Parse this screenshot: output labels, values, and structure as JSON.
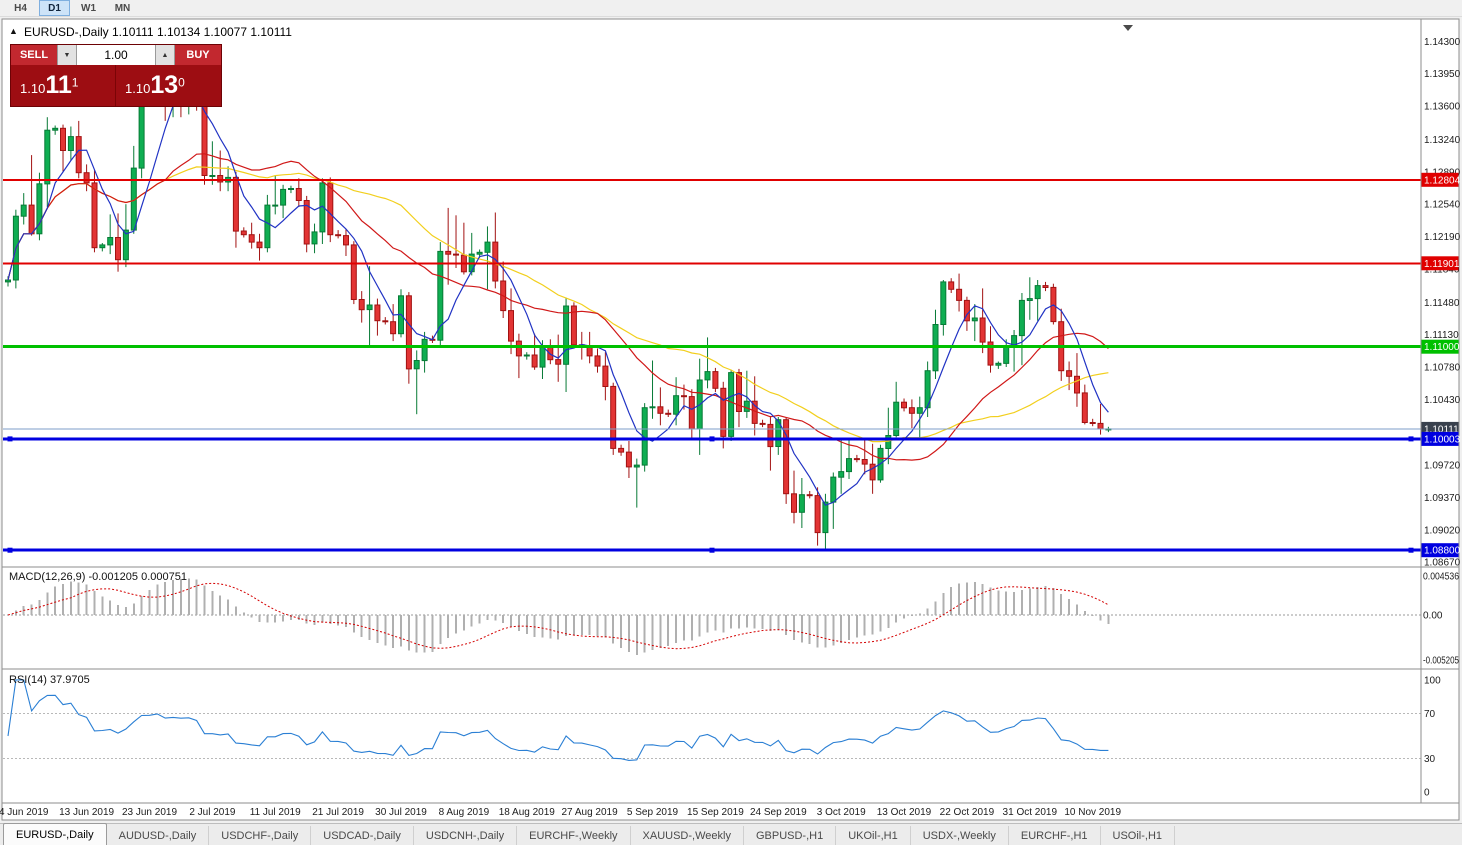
{
  "toolbar": {
    "timeframes": [
      "H4",
      "D1",
      "W1",
      "MN"
    ],
    "active": "D1"
  },
  "chart": {
    "title": "EURUSD-,Daily 1.10111 1.10134 1.10077 1.10111",
    "symbol": "EURUSD-",
    "period": "Daily"
  },
  "icons": {
    "one_click_collapse": "▲",
    "volume_down": "▼",
    "volume_up": "▲"
  },
  "one_click": {
    "sell_label": "SELL",
    "buy_label": "BUY",
    "volume": "1.00",
    "sell_price_prefix": "1.10",
    "sell_price_big": "11",
    "sell_price_sup": "1",
    "buy_price_prefix": "1.10",
    "buy_price_big": "13",
    "buy_price_sup": "0"
  },
  "macd": {
    "title": "MACD(12,26,9) -0.001205 0.000751",
    "value_main": "-0.001205",
    "value_signal": "0.000751"
  },
  "rsi": {
    "title": "RSI(14) 37.9705",
    "value": "37.9705"
  },
  "tabs": {
    "items": [
      "EURUSD-,Daily",
      "AUDUSD-,Daily",
      "USDCHF-,Daily",
      "USDCAD-,Daily",
      "USDCNH-,Daily",
      "EURCHF-,Weekly",
      "XAUUSD-,Weekly",
      "GBPUSD-,H1",
      "UKOil-,H1",
      "USDX-,Weekly",
      "EURCHF-,H1",
      "USOil-,H1"
    ],
    "active_index": 0
  },
  "chart_data": {
    "type": "candlestick",
    "symbol": "EURUSD-",
    "timeframe": "Daily",
    "last_bar_ohlc": {
      "open": "1.10111",
      "high": "1.10134",
      "low": "1.10077",
      "close": "1.10111"
    },
    "price_scale": {
      "max": 1.1452,
      "min": 1.0864
    },
    "price_axis": [
      {
        "v": 1.143,
        "t": "1.14300"
      },
      {
        "v": 1.1395,
        "t": "1.13950"
      },
      {
        "v": 1.136,
        "t": "1.13600"
      },
      {
        "v": 1.1324,
        "t": "1.13240"
      },
      {
        "v": 1.1289,
        "t": "1.12890"
      },
      {
        "v": 1.1254,
        "t": "1.12540"
      },
      {
        "v": 1.1219,
        "t": "1.12190"
      },
      {
        "v": 1.1184,
        "t": "1.11840"
      },
      {
        "v": 1.1148,
        "t": "1.11480"
      },
      {
        "v": 1.1113,
        "t": "1.11130"
      },
      {
        "v": 1.1078,
        "t": "1.10780"
      },
      {
        "v": 1.1043,
        "t": "1.10430"
      },
      {
        "v": 1.0972,
        "t": "1.09720"
      },
      {
        "v": 1.0937,
        "t": "1.09370"
      },
      {
        "v": 1.0902,
        "t": "1.09020"
      },
      {
        "v": 1.0867,
        "t": "1.08670"
      }
    ],
    "badges": [
      {
        "v": 1.12804,
        "t": "1.12804",
        "bg": "#e00000",
        "fg": "#ffffff"
      },
      {
        "v": 1.11901,
        "t": "1.11901",
        "bg": "#e00000",
        "fg": "#ffffff"
      },
      {
        "v": 1.11,
        "t": "1.11000",
        "bg": "#00c000",
        "fg": "#ffffff"
      },
      {
        "v": 1.10111,
        "t": "1.10111",
        "bg": "#39414d",
        "fg": "#ffffff"
      },
      {
        "v": 1.10003,
        "t": "1.10003",
        "bg": "#0000e0",
        "fg": "#ffffff"
      },
      {
        "v": 1.088,
        "t": "1.08800",
        "bg": "#0000e0",
        "fg": "#ffffff"
      }
    ],
    "hlines": [
      {
        "value": 1.12804,
        "color": "#e00000",
        "width": 2,
        "handles": false
      },
      {
        "value": 1.11901,
        "color": "#e00000",
        "width": 2,
        "handles": false
      },
      {
        "value": 1.11,
        "color": "#00c000",
        "width": 3,
        "handles": false
      },
      {
        "value": 1.10003,
        "color": "#0000e0",
        "width": 3,
        "handles": true
      },
      {
        "value": 1.088,
        "color": "#0000e0",
        "width": 3,
        "handles": true
      }
    ],
    "current_price": {
      "value": 1.10111,
      "line_color": "#7d9ec8"
    },
    "colors": {
      "up": "#0fae52",
      "down": "#e23434",
      "up_border": "#077a36",
      "down_border": "#a21212",
      "macd_bar": "#b0b0b0",
      "macd_signal": "#d40000",
      "rsi_line": "#2a7fd4"
    },
    "moving_averages": [
      {
        "period": 34,
        "color": "#f2cf1d",
        "name": "slow-ma"
      },
      {
        "period": 21,
        "color": "#d01818",
        "name": "medium-ma"
      },
      {
        "period": 6,
        "color": "#2133c4",
        "name": "fast-ma"
      }
    ],
    "candles": [
      [
        1.117,
        1.1176,
        1.1165,
        1.1172
      ],
      [
        1.1172,
        1.1248,
        1.1163,
        1.1241
      ],
      [
        1.1241,
        1.1266,
        1.1232,
        1.1253
      ],
      [
        1.1253,
        1.1307,
        1.122,
        1.1222
      ],
      [
        1.1222,
        1.1288,
        1.1215,
        1.1276
      ],
      [
        1.1276,
        1.1348,
        1.1251,
        1.1334
      ],
      [
        1.1334,
        1.1339,
        1.1329,
        1.1336
      ],
      [
        1.1336,
        1.134,
        1.1289,
        1.1312
      ],
      [
        1.1312,
        1.1338,
        1.1301,
        1.1327
      ],
      [
        1.1327,
        1.1344,
        1.1282,
        1.1288
      ],
      [
        1.1288,
        1.1297,
        1.1268,
        1.1277
      ],
      [
        1.1277,
        1.1291,
        1.1202,
        1.1207
      ],
      [
        1.1207,
        1.1212,
        1.1203,
        1.121
      ],
      [
        1.121,
        1.1243,
        1.12,
        1.1218
      ],
      [
        1.1218,
        1.1244,
        1.1181,
        1.1194
      ],
      [
        1.1194,
        1.1254,
        1.1186,
        1.1226
      ],
      [
        1.1226,
        1.1317,
        1.1222,
        1.1293
      ],
      [
        1.1293,
        1.1378,
        1.1282,
        1.1369
      ],
      [
        1.1369,
        1.1374,
        1.1365,
        1.1371
      ],
      [
        1.1371,
        1.1398,
        1.1367,
        1.139
      ],
      [
        1.139,
        1.14,
        1.1344,
        1.1366
      ],
      [
        1.1366,
        1.1391,
        1.1348,
        1.1373
      ],
      [
        1.1373,
        1.1388,
        1.1348,
        1.1369
      ],
      [
        1.1369,
        1.1391,
        1.1351,
        1.1373
      ],
      [
        1.1373,
        1.1377,
        1.1355,
        1.136
      ],
      [
        1.136,
        1.1365,
        1.1275,
        1.1285
      ],
      [
        1.1285,
        1.1322,
        1.1275,
        1.1285
      ],
      [
        1.1285,
        1.1312,
        1.1268,
        1.1278
      ],
      [
        1.1278,
        1.1295,
        1.1268,
        1.1283
      ],
      [
        1.1283,
        1.1289,
        1.1207,
        1.1225
      ],
      [
        1.1225,
        1.1229,
        1.1218,
        1.1221
      ],
      [
        1.1221,
        1.1234,
        1.1206,
        1.1213
      ],
      [
        1.1213,
        1.1222,
        1.1193,
        1.1207
      ],
      [
        1.1207,
        1.1264,
        1.1202,
        1.1253
      ],
      [
        1.1253,
        1.1285,
        1.1243,
        1.1253
      ],
      [
        1.1253,
        1.1275,
        1.1239,
        1.127
      ],
      [
        1.127,
        1.1274,
        1.1266,
        1.1271
      ],
      [
        1.1271,
        1.1282,
        1.1251,
        1.1258
      ],
      [
        1.1258,
        1.1263,
        1.1202,
        1.1211
      ],
      [
        1.1211,
        1.1233,
        1.1201,
        1.1224
      ],
      [
        1.1224,
        1.1282,
        1.1211,
        1.1277
      ],
      [
        1.1277,
        1.1283,
        1.1213,
        1.1221
      ],
      [
        1.1221,
        1.1226,
        1.1217,
        1.122
      ],
      [
        1.122,
        1.1227,
        1.1198,
        1.121
      ],
      [
        1.121,
        1.1214,
        1.1146,
        1.1151
      ],
      [
        1.1151,
        1.116,
        1.1126,
        1.114
      ],
      [
        1.114,
        1.1187,
        1.1101,
        1.1145
      ],
      [
        1.1145,
        1.1152,
        1.1112,
        1.1128
      ],
      [
        1.1128,
        1.1132,
        1.1124,
        1.1127
      ],
      [
        1.1127,
        1.1146,
        1.1106,
        1.1114
      ],
      [
        1.1114,
        1.1162,
        1.111,
        1.1155
      ],
      [
        1.1155,
        1.1159,
        1.106,
        1.1076
      ],
      [
        1.1076,
        1.1096,
        1.1027,
        1.1085
      ],
      [
        1.1085,
        1.1116,
        1.1072,
        1.1108
      ],
      [
        1.1108,
        1.1112,
        1.1104,
        1.1107
      ],
      [
        1.1107,
        1.1213,
        1.1101,
        1.1203
      ],
      [
        1.1203,
        1.125,
        1.1167,
        1.12
      ],
      [
        1.12,
        1.1242,
        1.1185,
        1.1199
      ],
      [
        1.1199,
        1.1234,
        1.1178,
        1.1181
      ],
      [
        1.1181,
        1.1223,
        1.1177,
        1.12
      ],
      [
        1.12,
        1.1205,
        1.1196,
        1.1202
      ],
      [
        1.1202,
        1.123,
        1.1162,
        1.1213
      ],
      [
        1.1213,
        1.1245,
        1.1163,
        1.1171
      ],
      [
        1.1171,
        1.1192,
        1.1131,
        1.1139
      ],
      [
        1.1139,
        1.1163,
        1.1092,
        1.1106
      ],
      [
        1.1106,
        1.1114,
        1.1066,
        1.109
      ],
      [
        1.109,
        1.1094,
        1.1086,
        1.1091
      ],
      [
        1.1091,
        1.1114,
        1.1075,
        1.1078
      ],
      [
        1.1078,
        1.1107,
        1.1065,
        1.11
      ],
      [
        1.11,
        1.1108,
        1.1081,
        1.1086
      ],
      [
        1.1086,
        1.1113,
        1.1062,
        1.1081
      ],
      [
        1.1081,
        1.1153,
        1.1051,
        1.1144
      ],
      [
        1.1144,
        1.1148,
        1.1098,
        1.1102
      ],
      [
        1.1102,
        1.1116,
        1.1086,
        1.1101
      ],
      [
        1.1101,
        1.1116,
        1.1082,
        1.109
      ],
      [
        1.109,
        1.1098,
        1.1072,
        1.1079
      ],
      [
        1.1079,
        1.1094,
        1.1042,
        1.1057
      ],
      [
        1.1057,
        1.1061,
        1.0983,
        1.099
      ],
      [
        1.099,
        1.0994,
        1.0982,
        1.0986
      ],
      [
        1.0986,
        1.0998,
        1.0958,
        1.097
      ],
      [
        1.097,
        1.0979,
        1.0926,
        1.0972
      ],
      [
        1.0972,
        1.1039,
        1.0965,
        1.1034
      ],
      [
        1.1034,
        1.1085,
        1.1022,
        1.1035
      ],
      [
        1.1035,
        1.1056,
        1.1015,
        1.1028
      ],
      [
        1.1028,
        1.1032,
        1.1024,
        1.1027
      ],
      [
        1.1027,
        1.1067,
        1.1015,
        1.1047
      ],
      [
        1.1047,
        1.1059,
        1.1032,
        1.1046
      ],
      [
        1.1046,
        1.1054,
        1.0999,
        1.1011
      ],
      [
        1.1011,
        1.1087,
        1.0983,
        1.1064
      ],
      [
        1.1064,
        1.111,
        1.1055,
        1.1073
      ],
      [
        1.1073,
        1.1077,
        1.1051,
        1.1055
      ],
      [
        1.1055,
        1.1062,
        1.099,
        1.1003
      ],
      [
        1.1003,
        1.1075,
        1.0998,
        1.1072
      ],
      [
        1.1072,
        1.1076,
        1.1013,
        1.103
      ],
      [
        1.103,
        1.1074,
        1.1023,
        1.1041
      ],
      [
        1.1041,
        1.1068,
        1.1004,
        1.1017
      ],
      [
        1.1017,
        1.1021,
        1.1013,
        1.1016
      ],
      [
        1.1016,
        1.1025,
        1.0966,
        1.0992
      ],
      [
        1.0992,
        1.1024,
        1.0983,
        1.1021
      ],
      [
        1.1021,
        1.1024,
        1.093,
        1.0941
      ],
      [
        1.0941,
        1.0966,
        1.0909,
        1.0921
      ],
      [
        1.0921,
        1.0958,
        1.0904,
        1.094
      ],
      [
        1.094,
        1.0944,
        1.0936,
        1.0939
      ],
      [
        1.0939,
        1.0948,
        1.0885,
        1.0899
      ],
      [
        1.0899,
        1.0941,
        1.0879,
        1.0932
      ],
      [
        1.0932,
        1.0964,
        1.0903,
        1.0959
      ],
      [
        1.0959,
        1.0999,
        1.0941,
        1.0965
      ],
      [
        1.0965,
        1.0999,
        1.0957,
        1.0979
      ],
      [
        1.0979,
        1.0983,
        1.0975,
        1.0978
      ],
      [
        1.0978,
        1.1,
        1.0962,
        1.0973
      ],
      [
        1.0973,
        1.0995,
        1.0941,
        1.0956
      ],
      [
        1.0956,
        1.0994,
        1.0953,
        1.099
      ],
      [
        1.099,
        1.1034,
        1.0973,
        1.1004
      ],
      [
        1.1004,
        1.1062,
        1.1002,
        1.104
      ],
      [
        1.104,
        1.1044,
        1.103,
        1.1034
      ],
      [
        1.1034,
        1.1043,
        1.1012,
        1.1028
      ],
      [
        1.1028,
        1.1046,
        1.1001,
        1.1034
      ],
      [
        1.1034,
        1.1084,
        1.1024,
        1.1074
      ],
      [
        1.1074,
        1.114,
        1.1065,
        1.1124
      ],
      [
        1.1124,
        1.1172,
        1.1112,
        1.117
      ],
      [
        1.117,
        1.1174,
        1.1158,
        1.1162
      ],
      [
        1.1162,
        1.1179,
        1.1138,
        1.115
      ],
      [
        1.115,
        1.1154,
        1.1117,
        1.1128
      ],
      [
        1.1128,
        1.1146,
        1.1106,
        1.1131
      ],
      [
        1.1131,
        1.1163,
        1.1093,
        1.1105
      ],
      [
        1.1105,
        1.1122,
        1.1072,
        1.108
      ],
      [
        1.108,
        1.1084,
        1.1076,
        1.1082
      ],
      [
        1.1082,
        1.1108,
        1.1078,
        1.11
      ],
      [
        1.11,
        1.1118,
        1.1073,
        1.1112
      ],
      [
        1.1112,
        1.1158,
        1.108,
        1.115
      ],
      [
        1.115,
        1.1175,
        1.1129,
        1.1152
      ],
      [
        1.1152,
        1.1172,
        1.1128,
        1.1166
      ],
      [
        1.1166,
        1.117,
        1.116,
        1.1164
      ],
      [
        1.1164,
        1.1168,
        1.1124,
        1.1127
      ],
      [
        1.1127,
        1.1141,
        1.1063,
        1.1074
      ],
      [
        1.1074,
        1.1084,
        1.1053,
        1.1068
      ],
      [
        1.1068,
        1.1093,
        1.1035,
        1.105
      ],
      [
        1.105,
        1.1059,
        1.1016,
        1.1018
      ],
      [
        1.1018,
        1.1022,
        1.1014,
        1.1017
      ],
      [
        1.1017,
        1.1038,
        1.1005,
        1.1011
      ],
      [
        1.10111,
        1.10134,
        1.10077,
        1.10111
      ]
    ],
    "x_labels": [
      {
        "i": 2,
        "t": "4 Jun 2019"
      },
      {
        "i": 10,
        "t": "13 Jun 2019"
      },
      {
        "i": 18,
        "t": "23 Jun 2019"
      },
      {
        "i": 26,
        "t": "2 Jul 2019"
      },
      {
        "i": 34,
        "t": "11 Jul 2019"
      },
      {
        "i": 42,
        "t": "21 Jul 2019"
      },
      {
        "i": 50,
        "t": "30 Jul 2019"
      },
      {
        "i": 58,
        "t": "8 Aug 2019"
      },
      {
        "i": 66,
        "t": "18 Aug 2019"
      },
      {
        "i": 74,
        "t": "27 Aug 2019"
      },
      {
        "i": 82,
        "t": "5 Sep 2019"
      },
      {
        "i": 90,
        "t": "15 Sep 2019"
      },
      {
        "i": 98,
        "t": "24 Sep 2019"
      },
      {
        "i": 106,
        "t": "3 Oct 2019"
      },
      {
        "i": 114,
        "t": "13 Oct 2019"
      },
      {
        "i": 122,
        "t": "22 Oct 2019"
      },
      {
        "i": 130,
        "t": "31 Oct 2019"
      },
      {
        "i": 138,
        "t": "10 Nov 2019"
      }
    ],
    "macd_params": {
      "fast": 12,
      "slow": 26,
      "signal": 9
    },
    "macd_scale": {
      "max": 0.0052,
      "min": -0.006
    },
    "macd_axis": [
      {
        "v": 0.004536,
        "t": "0.004536"
      },
      {
        "v": 0,
        "t": "0.00"
      },
      {
        "v": -0.005205,
        "t": "-0.005205"
      }
    ],
    "rsi_period": 14,
    "rsi_levels": [
      70,
      30
    ],
    "rsi_axis": [
      {
        "v": 100,
        "t": "100"
      },
      {
        "v": 70,
        "t": "70"
      },
      {
        "v": 30,
        "t": "30"
      },
      {
        "v": 0,
        "t": "0"
      }
    ]
  }
}
